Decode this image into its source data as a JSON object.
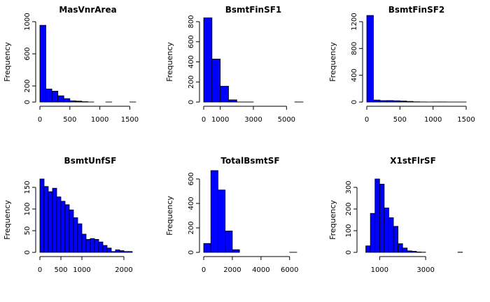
{
  "chart_data": [
    {
      "type": "bar",
      "title": "MasVnrArea",
      "xlabel": "",
      "ylabel": "Frequency",
      "bin_start": 0,
      "bin_width": 100,
      "values": [
        955,
        163,
        136,
        78,
        43,
        16,
        12,
        5,
        1,
        0,
        0,
        1,
        0,
        0,
        0,
        1
      ],
      "xlim": [
        0,
        1600
      ],
      "ylim": [
        0,
        1000
      ],
      "xticks": [
        0,
        500,
        1000,
        1500
      ],
      "xtick_labels": [
        "0",
        "500",
        "1000",
        "1500"
      ],
      "yticks": [
        0,
        200,
        600,
        1000
      ],
      "ytick_labels": [
        "0",
        "200",
        "600",
        "1000"
      ]
    },
    {
      "type": "bar",
      "title": "BsmtFinSF1",
      "xlabel": "",
      "ylabel": "Frequency",
      "bin_start": 0,
      "bin_width": 500,
      "values": [
        838,
        428,
        158,
        22,
        1,
        1,
        0,
        0,
        0,
        0,
        0,
        1
      ],
      "xlim": [
        0,
        6000
      ],
      "ylim": [
        0,
        800
      ],
      "xticks": [
        0,
        1000,
        3000,
        5000
      ],
      "xtick_labels": [
        "0",
        "1000",
        "3000",
        "5000"
      ],
      "yticks": [
        0,
        200,
        400,
        600,
        800
      ],
      "ytick_labels": [
        "0",
        "200",
        "400",
        "600",
        "800"
      ]
    },
    {
      "type": "bar",
      "title": "BsmtFinSF2",
      "xlabel": "",
      "ylabel": "Frequency",
      "bin_start": 0,
      "bin_width": 100,
      "values": [
        1293,
        30,
        22,
        23,
        20,
        16,
        10,
        4,
        2,
        1,
        2,
        2,
        1,
        1,
        1,
        0
      ],
      "xlim": [
        0,
        1500
      ],
      "ylim": [
        0,
        1200
      ],
      "xticks": [
        0,
        500,
        1000,
        1500
      ],
      "xtick_labels": [
        "0",
        "500",
        "1000",
        "1500"
      ],
      "yticks": [
        0,
        400,
        800,
        1200
      ],
      "ytick_labels": [
        "0",
        "400",
        "800",
        "1200"
      ]
    },
    {
      "type": "bar",
      "title": "BsmtUnfSF",
      "xlabel": "",
      "ylabel": "Frequency",
      "bin_start": 0,
      "bin_width": 100,
      "values": [
        186,
        152,
        140,
        148,
        128,
        118,
        110,
        98,
        80,
        66,
        42,
        30,
        32,
        30,
        24,
        16,
        10,
        2,
        6,
        4,
        2,
        2,
        0,
        0
      ],
      "xlim": [
        0,
        2400
      ],
      "ylim": [
        0,
        150
      ],
      "xticks": [
        0,
        500,
        1000,
        2000
      ],
      "xtick_labels": [
        "0",
        "500",
        "1000",
        "2000"
      ],
      "yticks": [
        0,
        50,
        100,
        150
      ],
      "ytick_labels": [
        "0",
        "50",
        "100",
        "150"
      ]
    },
    {
      "type": "bar",
      "title": "TotalBsmtSF",
      "xlabel": "",
      "ylabel": "Frequency",
      "bin_start": 0,
      "bin_width": 500,
      "values": [
        73,
        680,
        510,
        175,
        22,
        0,
        0,
        0,
        0,
        0,
        0,
        0,
        1
      ],
      "xlim": [
        0,
        6500
      ],
      "ylim": [
        0,
        600
      ],
      "xticks": [
        0,
        2000,
        4000,
        6000
      ],
      "xtick_labels": [
        "0",
        "2000",
        "4000",
        "6000"
      ],
      "yticks": [
        0,
        200,
        400,
        600
      ],
      "ytick_labels": [
        "0",
        "200",
        "400",
        "600"
      ]
    },
    {
      "type": "bar",
      "title": "X1stFlrSF",
      "xlabel": "",
      "ylabel": "Frequency",
      "bin_start": 200,
      "bin_width": 200,
      "values": [
        0,
        30,
        180,
        375,
        315,
        205,
        160,
        120,
        40,
        20,
        7,
        5,
        2,
        1,
        0,
        0,
        0,
        0,
        0,
        0,
        0,
        1
      ],
      "xlim": [
        200,
        4700
      ],
      "ylim": [
        0,
        300
      ],
      "xticks": [
        1000,
        3000
      ],
      "xtick_labels": [
        "1000",
        "3000"
      ],
      "yticks": [
        0,
        100,
        200,
        300
      ],
      "ytick_labels": [
        "0",
        "100",
        "200",
        "300"
      ]
    }
  ]
}
